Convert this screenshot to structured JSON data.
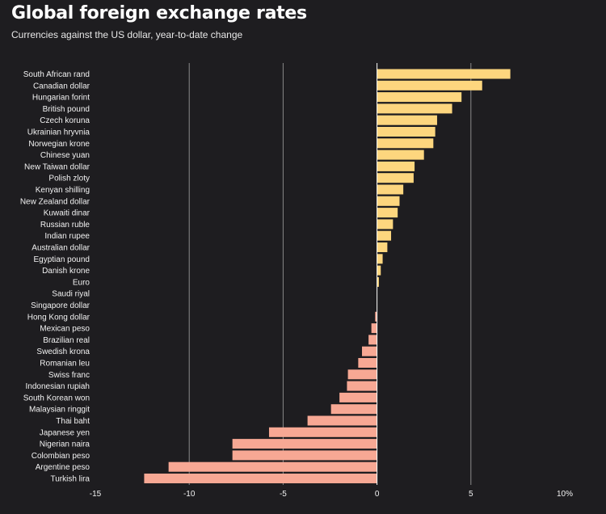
{
  "header": {
    "title": "Global foreign exchange rates",
    "subtitle": "Currencies against the US dollar, year-to-date change"
  },
  "colors": {
    "background": "#1e1d20",
    "positive": "#fdd67e",
    "negative": "#f7a894",
    "gridline": "#8a8a8a",
    "zero_line": "#ffffff"
  },
  "chart_data": {
    "type": "bar",
    "orientation": "horizontal",
    "title": "Global foreign exchange rates",
    "subtitle": "Currencies against the US dollar, year-to-date change",
    "xlabel": "",
    "ylabel": "",
    "xlim": [
      -15,
      10
    ],
    "ticks": [
      -15,
      -10,
      -5,
      0,
      5,
      10
    ],
    "tick_labels": [
      "-15",
      "-10",
      "-5",
      "0",
      "5",
      "10%"
    ],
    "grid": true,
    "categories": [
      "South African rand",
      "Canadian dollar",
      "Hungarian forint",
      "British pound",
      "Czech koruna",
      "Ukrainian hryvnia",
      "Norwegian krone",
      "Chinese yuan",
      "New Taiwan dollar",
      "Polish zloty",
      "Kenyan shilling",
      "New Zealand dollar",
      "Kuwaiti dinar",
      "Russian ruble",
      "Indian rupee",
      "Australian dollar",
      "Egyptian pound",
      "Danish krone",
      "Euro",
      "Saudi riyal",
      "Singapore dollar",
      "Hong Kong dollar",
      "Mexican peso",
      "Brazilian real",
      "Swedish krona",
      "Romanian leu",
      "Swiss franc",
      "Indonesian rupiah",
      "South Korean won",
      "Malaysian ringgit",
      "Thai baht",
      "Japanese yen",
      "Nigerian naira",
      "Colombian peso",
      "Argentine peso",
      "Turkish lira"
    ],
    "values": [
      7.1,
      5.6,
      4.5,
      4.0,
      3.2,
      3.1,
      3.0,
      2.5,
      2.0,
      1.95,
      1.4,
      1.2,
      1.1,
      0.85,
      0.75,
      0.55,
      0.3,
      0.2,
      0.1,
      0.0,
      0.0,
      -0.1,
      -0.3,
      -0.45,
      -0.8,
      -1.0,
      -1.55,
      -1.6,
      -2.0,
      -2.45,
      -3.7,
      -5.75,
      -7.7,
      -7.7,
      -11.1,
      -12.4
    ]
  }
}
